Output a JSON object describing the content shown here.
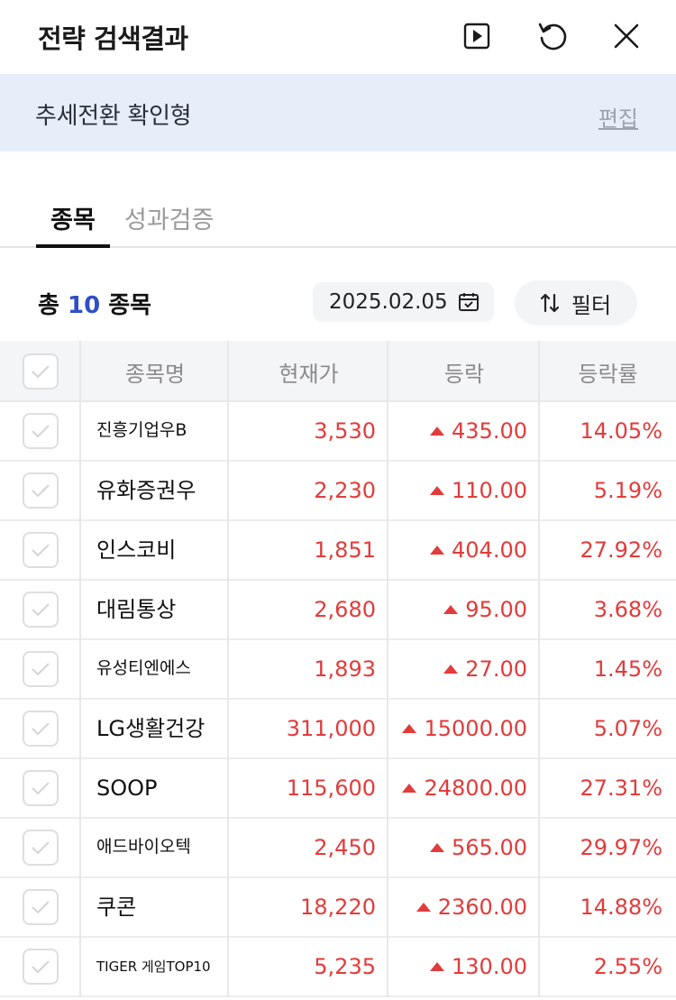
{
  "header": {
    "title": "전략 검색결과",
    "icons": [
      "play-icon",
      "refresh-icon",
      "close-icon"
    ]
  },
  "strategy": {
    "name": "추세전환 확인형",
    "edit_label": "편집"
  },
  "tabs": [
    {
      "label": "종목",
      "active": true
    },
    {
      "label": "성과검증",
      "active": false
    }
  ],
  "summary": {
    "prefix": "총",
    "count": "10",
    "suffix": "종목",
    "date": "2025.02.05",
    "filter_label": "필터"
  },
  "table": {
    "columns": [
      "종목명",
      "현재가",
      "등락",
      "등락률"
    ],
    "rows": [
      {
        "name": "진흥기업우B",
        "price": "3,530",
        "change": "435.00",
        "rate": "14.05%"
      },
      {
        "name": "유화증권우",
        "price": "2,230",
        "change": "110.00",
        "rate": "5.19%"
      },
      {
        "name": "인스코비",
        "price": "1,851",
        "change": "404.00",
        "rate": "27.92%"
      },
      {
        "name": "대림통상",
        "price": "2,680",
        "change": "95.00",
        "rate": "3.68%"
      },
      {
        "name": "유성티엔에스",
        "price": "1,893",
        "change": "27.00",
        "rate": "1.45%"
      },
      {
        "name": "LG생활건강",
        "price": "311,000",
        "change": "15000.00",
        "rate": "5.07%"
      },
      {
        "name": "SOOP",
        "price": "115,600",
        "change": "24800.00",
        "rate": "27.31%"
      },
      {
        "name": "애드바이오텍",
        "price": "2,450",
        "change": "565.00",
        "rate": "29.97%"
      },
      {
        "name": "쿠콘",
        "price": "18,220",
        "change": "2360.00",
        "rate": "14.88%"
      },
      {
        "name": "TIGER 게임TOP10",
        "price": "5,235",
        "change": "130.00",
        "rate": "2.55%"
      }
    ]
  },
  "colors": {
    "up": "#e23b3b",
    "accent": "#2f4fc4",
    "strategy_bg": "#e6eef9"
  }
}
